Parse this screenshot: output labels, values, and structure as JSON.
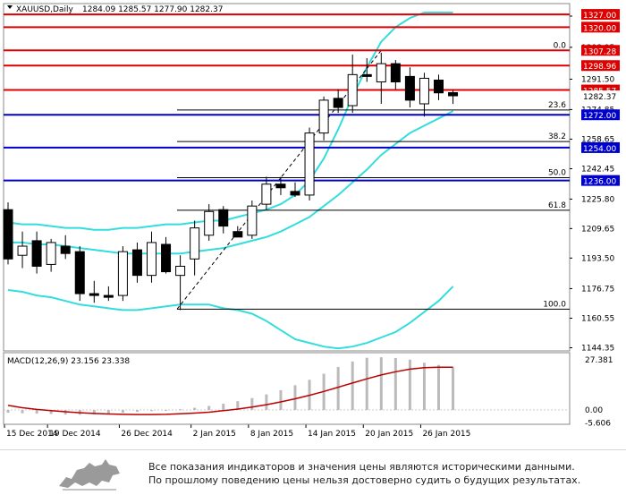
{
  "header": {
    "symbol_label": "XAUUSD,Daily",
    "ohlc_text": "1284.09 1285.57 1277.90 1282.37"
  },
  "macd": {
    "label": "MACD(12,26,9) 23.156 23.338",
    "scale_top": "27.381",
    "scale_zero": "0.00",
    "scale_bottom": "-5.606"
  },
  "footer": {
    "line1": "Все показания индикаторов и значения цены являются историческими данными.",
    "line2": "По прошлому поведению цены нельзя достоверно судить о будущих результатах."
  },
  "colors": {
    "bull": "#ffffff",
    "bear": "#000000",
    "bollinger": "#33dddd",
    "resistance": "#dd0000",
    "support": "#0000cc",
    "macd_hist": "#bbbbbb",
    "macd_signal": "#bb0000"
  },
  "chart_data": {
    "type": "candlestick",
    "price_axis_ticks": [
      "1326.05",
      "1308.95",
      "1291.50",
      "1274.85",
      "1258.65",
      "1242.45",
      "1225.80",
      "1209.65",
      "1193.50",
      "1176.75",
      "1160.55",
      "1144.35"
    ],
    "date_labels": [
      "15 Dec 2014",
      "19 Dec 2014",
      "26 Dec 2014",
      "2 Jan 2015",
      "8 Jan 2015",
      "14 Jan 2015",
      "20 Jan 2015",
      "26 Jan 2015"
    ],
    "candles": [
      {
        "o": 1220.0,
        "h": 1224.0,
        "l": 1190.0,
        "c": 1193.0
      },
      {
        "o": 1195.0,
        "h": 1208.0,
        "l": 1188.0,
        "c": 1200.0
      },
      {
        "o": 1203.0,
        "h": 1208.0,
        "l": 1185.0,
        "c": 1189.0
      },
      {
        "o": 1190.0,
        "h": 1204.0,
        "l": 1186.0,
        "c": 1202.0
      },
      {
        "o": 1200.0,
        "h": 1206.0,
        "l": 1193.0,
        "c": 1196.0
      },
      {
        "o": 1197.0,
        "h": 1200.0,
        "l": 1170.0,
        "c": 1174.0
      },
      {
        "o": 1174.0,
        "h": 1181.0,
        "l": 1169.0,
        "c": 1173.0
      },
      {
        "o": 1173.0,
        "h": 1178.0,
        "l": 1170.0,
        "c": 1172.0
      },
      {
        "o": 1173.0,
        "h": 1200.0,
        "l": 1170.0,
        "c": 1197.0
      },
      {
        "o": 1198.0,
        "h": 1202.0,
        "l": 1180.0,
        "c": 1184.0
      },
      {
        "o": 1184.0,
        "h": 1208.0,
        "l": 1180.0,
        "c": 1202.0
      },
      {
        "o": 1201.0,
        "h": 1205.0,
        "l": 1185.0,
        "c": 1186.0
      },
      {
        "o": 1184.0,
        "h": 1195.0,
        "l": 1165.0,
        "c": 1189.0
      },
      {
        "o": 1193.0,
        "h": 1214.0,
        "l": 1184.0,
        "c": 1210.0
      },
      {
        "o": 1206.0,
        "h": 1223.0,
        "l": 1203.0,
        "c": 1219.0
      },
      {
        "o": 1220.0,
        "h": 1222.0,
        "l": 1207.0,
        "c": 1211.0
      },
      {
        "o": 1208.0,
        "h": 1211.0,
        "l": 1205.0,
        "c": 1205.0
      },
      {
        "o": 1206.0,
        "h": 1225.0,
        "l": 1204.0,
        "c": 1222.0
      },
      {
        "o": 1223.0,
        "h": 1238.0,
        "l": 1220.0,
        "c": 1234.0
      },
      {
        "o": 1234.0,
        "h": 1238.0,
        "l": 1228.0,
        "c": 1232.0
      },
      {
        "o": 1230.0,
        "h": 1235.0,
        "l": 1227.0,
        "c": 1228.0
      },
      {
        "o": 1228.0,
        "h": 1265.0,
        "l": 1225.0,
        "c": 1262.0
      },
      {
        "o": 1262.0,
        "h": 1282.0,
        "l": 1258.0,
        "c": 1280.0
      },
      {
        "o": 1281.0,
        "h": 1286.0,
        "l": 1273.0,
        "c": 1276.0
      },
      {
        "o": 1277.0,
        "h": 1305.0,
        "l": 1273.0,
        "c": 1294.0
      },
      {
        "o": 1294.0,
        "h": 1303.0,
        "l": 1290.0,
        "c": 1293.0
      },
      {
        "o": 1290.0,
        "h": 1306.0,
        "l": 1278.0,
        "c": 1300.0
      },
      {
        "o": 1300.0,
        "h": 1302.0,
        "l": 1286.0,
        "c": 1290.0
      },
      {
        "o": 1293.0,
        "h": 1298.0,
        "l": 1276.0,
        "c": 1280.0
      },
      {
        "o": 1278.0,
        "h": 1295.0,
        "l": 1271.0,
        "c": 1292.0
      },
      {
        "o": 1291.0,
        "h": 1294.0,
        "l": 1280.0,
        "c": 1284.0
      },
      {
        "o": 1284.1,
        "h": 1285.6,
        "l": 1277.9,
        "c": 1282.4
      }
    ],
    "bollinger": {
      "upper": [
        1213,
        1212,
        1212,
        1211,
        1210,
        1210,
        1209,
        1209,
        1210,
        1210,
        1211,
        1212,
        1212,
        1213,
        1214,
        1214,
        1216,
        1218,
        1220,
        1223,
        1228,
        1236,
        1248,
        1264,
        1282,
        1298,
        1312,
        1320,
        1325,
        1328,
        1328,
        1328
      ],
      "middle": [
        1202,
        1202,
        1201,
        1201,
        1200,
        1199,
        1198,
        1197,
        1196,
        1196,
        1196,
        1196,
        1196,
        1197,
        1198,
        1199,
        1201,
        1203,
        1205,
        1208,
        1212,
        1216,
        1222,
        1228,
        1235,
        1242,
        1250,
        1256,
        1262,
        1266,
        1270,
        1274
      ],
      "lower": [
        1176,
        1175,
        1173,
        1172,
        1170,
        1168,
        1167,
        1166,
        1165,
        1165,
        1166,
        1167,
        1168,
        1168,
        1168,
        1166,
        1165,
        1163,
        1159,
        1154,
        1149,
        1147,
        1145,
        1144,
        1145,
        1147,
        1150,
        1153,
        1158,
        1164,
        1170,
        1178
      ]
    },
    "horizontal_levels": [
      {
        "label": "1327.00",
        "price": 1327.0,
        "kind": "resistance"
      },
      {
        "label": "1320.00",
        "price": 1320.0,
        "kind": "resistance"
      },
      {
        "label": "1307.28",
        "price": 1307.28,
        "kind": "resistance"
      },
      {
        "label": "1298.96",
        "price": 1298.96,
        "kind": "resistance"
      },
      {
        "label": "1285.57",
        "price": 1285.57,
        "kind": "resistance"
      },
      {
        "label": "1272.00",
        "price": 1272.0,
        "kind": "support"
      },
      {
        "label": "1254.00",
        "price": 1254.0,
        "kind": "support"
      },
      {
        "label": "1236.00",
        "price": 1236.0,
        "kind": "support"
      }
    ],
    "fibonacci": [
      {
        "label": "0.0",
        "price": 1307.28
      },
      {
        "label": "23.6",
        "price": 1274.6
      },
      {
        "label": "38.2",
        "price": 1257.3
      },
      {
        "label": "50.0",
        "price": 1237.5
      },
      {
        "label": "61.8",
        "price": 1219.7
      },
      {
        "label": "100.0",
        "price": 1165.5
      }
    ],
    "current_price_label": "1282.37",
    "macd_hist": [
      -1.5,
      -1.8,
      -2.0,
      -2.2,
      -2.5,
      -2.6,
      -2.4,
      -2.0,
      -1.5,
      -1.0,
      -0.6,
      -0.2,
      0.4,
      1.2,
      2.2,
      3.4,
      4.8,
      6.5,
      8.5,
      10.8,
      13.5,
      16.5,
      19.8,
      23.5,
      26.5,
      28.5,
      28.8,
      28.4,
      27.5,
      25.8,
      24.6,
      23.2
    ],
    "macd_signal": [
      2.5,
      1.2,
      0.3,
      -0.4,
      -1.0,
      -1.5,
      -1.9,
      -2.2,
      -2.4,
      -2.5,
      -2.5,
      -2.4,
      -2.1,
      -1.7,
      -1.2,
      -0.4,
      0.5,
      1.6,
      2.9,
      4.4,
      6.1,
      8.0,
      10.1,
      12.4,
      14.7,
      17.0,
      19.1,
      20.9,
      22.3,
      23.1,
      23.3,
      23.34
    ]
  }
}
